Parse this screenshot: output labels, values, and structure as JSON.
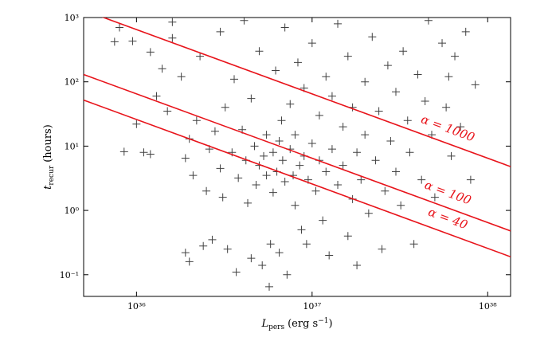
{
  "chart_data": {
    "type": "scatter",
    "xlabel": {
      "symbol": "L",
      "subscript": "pers",
      "text": "(erg s",
      "superscript": "−1",
      "tail": ")"
    },
    "ylabel": {
      "symbol": "t",
      "subscript": "recur",
      "text": "(hours)"
    },
    "log_x": true,
    "log_y": true,
    "marker": "+",
    "color": "#000000",
    "xlim": [
      5e+35,
      1.35e+38
    ],
    "ylim": [
      0.046,
      1000
    ],
    "xticks": [
      {
        "value": 1e+36,
        "label": "10³⁶"
      },
      {
        "value": 1e+37,
        "label": "10³⁷"
      },
      {
        "value": 1e+38,
        "label": "10³⁸"
      }
    ],
    "yticks": [
      {
        "value": 0.1,
        "label": "10⁻¹"
      },
      {
        "value": 1,
        "label": "10⁰"
      },
      {
        "value": 10,
        "label": "10¹"
      },
      {
        "value": 100,
        "label": "10²"
      },
      {
        "value": 1000,
        "label": "10³"
      }
    ],
    "x": [
      8e+35,
      7.5e+35,
      9.5e+35,
      1e+36,
      8.5e+35,
      1.1e+36,
      1.2e+36,
      1.2e+36,
      1.3e+36,
      1.4e+36,
      1.5e+36,
      1.6e+36,
      1.6e+36,
      1.8e+36,
      1.9e+36,
      1.9e+36,
      2e+36,
      2e+36,
      2.1e+36,
      2.2e+36,
      2.3e+36,
      2.4e+36,
      2.5e+36,
      2.6e+36,
      2.7e+36,
      2.8e+36,
      3e+36,
      3e+36,
      3.1e+36,
      3.2e+36,
      3.3e+36,
      3.5e+36,
      3.6e+36,
      3.7e+36,
      3.8e+36,
      4e+36,
      4.1e+36,
      4.2e+36,
      4.3e+36,
      4.5e+36,
      4.5e+36,
      4.7e+36,
      4.8e+36,
      5e+36,
      5e+36,
      5.2e+36,
      5.3e+36,
      5.5e+36,
      5.5e+36,
      5.7e+36,
      5.8e+36,
      6e+36,
      6e+36,
      6.2e+36,
      6.3e+36,
      6.5e+36,
      6.5e+36,
      6.7e+36,
      6.8e+36,
      7e+36,
      7e+36,
      7.2e+36,
      7.5e+36,
      7.5e+36,
      7.8e+36,
      8e+36,
      8e+36,
      8.3e+36,
      8.5e+36,
      8.7e+36,
      9e+36,
      9e+36,
      9.3e+36,
      9.5e+36,
      1e+37,
      1e+37,
      1.05e+37,
      1.1e+37,
      1.1e+37,
      1.15e+37,
      1.2e+37,
      1.2e+37,
      1.25e+37,
      1.3e+37,
      1.3e+37,
      1.4e+37,
      1.4e+37,
      1.5e+37,
      1.5e+37,
      1.6e+37,
      1.6e+37,
      1.7e+37,
      1.7e+37,
      1.8e+37,
      1.8e+37,
      1.9e+37,
      2e+37,
      2e+37,
      2.1e+37,
      2.2e+37,
      2.3e+37,
      2.4e+37,
      2.5e+37,
      2.6e+37,
      2.7e+37,
      2.8e+37,
      3e+37,
      3e+37,
      3.2e+37,
      3.3e+37,
      3.5e+37,
      3.6e+37,
      3.8e+37,
      4e+37,
      4.2e+37,
      4.4e+37,
      4.6e+37,
      4.8e+37,
      5e+37,
      5.5e+37,
      5.8e+37,
      6e+37,
      6.2e+37,
      6.5e+37,
      7e+37,
      7.5e+37,
      8e+37,
      8.5e+37
    ],
    "values": [
      700,
      420,
      430,
      22,
      8.2,
      8,
      7.5,
      290,
      60,
      160,
      35,
      480,
      850,
      120,
      6.5,
      0.22,
      0.16,
      13,
      3.5,
      25,
      250,
      0.28,
      2,
      9,
      0.35,
      17,
      4.5,
      600,
      1.6,
      40,
      0.25,
      8,
      110,
      0.11,
      3.2,
      18,
      900,
      6,
      1.3,
      0.18,
      55,
      10,
      2.5,
      300,
      5,
      0.14,
      7,
      15,
      3.5,
      0.065,
      0.3,
      8,
      1.9,
      150,
      4,
      12,
      0.22,
      25,
      6,
      2.8,
      700,
      0.1,
      9,
      45,
      3.5,
      15,
      1.2,
      200,
      5,
      0.5,
      7,
      80,
      0.3,
      3,
      11,
      400,
      2,
      6,
      30,
      0.7,
      4,
      120,
      0.2,
      9,
      60,
      2.5,
      800,
      5,
      20,
      0.4,
      250,
      1.5,
      40,
      8,
      0.14,
      3,
      100,
      15,
      0.9,
      500,
      6,
      35,
      0.25,
      2,
      180,
      12,
      4,
      70,
      1.2,
      300,
      25,
      8,
      0.3,
      130,
      3,
      50,
      900,
      15,
      1.6,
      400,
      40,
      120,
      7,
      250,
      20,
      600,
      3,
      90
    ],
    "series": [
      {
        "name": "α = 1000",
        "color": "#e8141b",
        "x": [
          5e+35,
          1.35e+38
        ],
        "values": [
          1300,
          4.8
        ]
      },
      {
        "name": "α = 100",
        "color": "#e8141b",
        "x": [
          5e+35,
          1.35e+38
        ],
        "values": [
          130,
          0.48
        ]
      },
      {
        "name": "α = 40",
        "color": "#e8141b",
        "x": [
          5e+35,
          1.35e+38
        ],
        "values": [
          52,
          0.19
        ]
      }
    ]
  }
}
